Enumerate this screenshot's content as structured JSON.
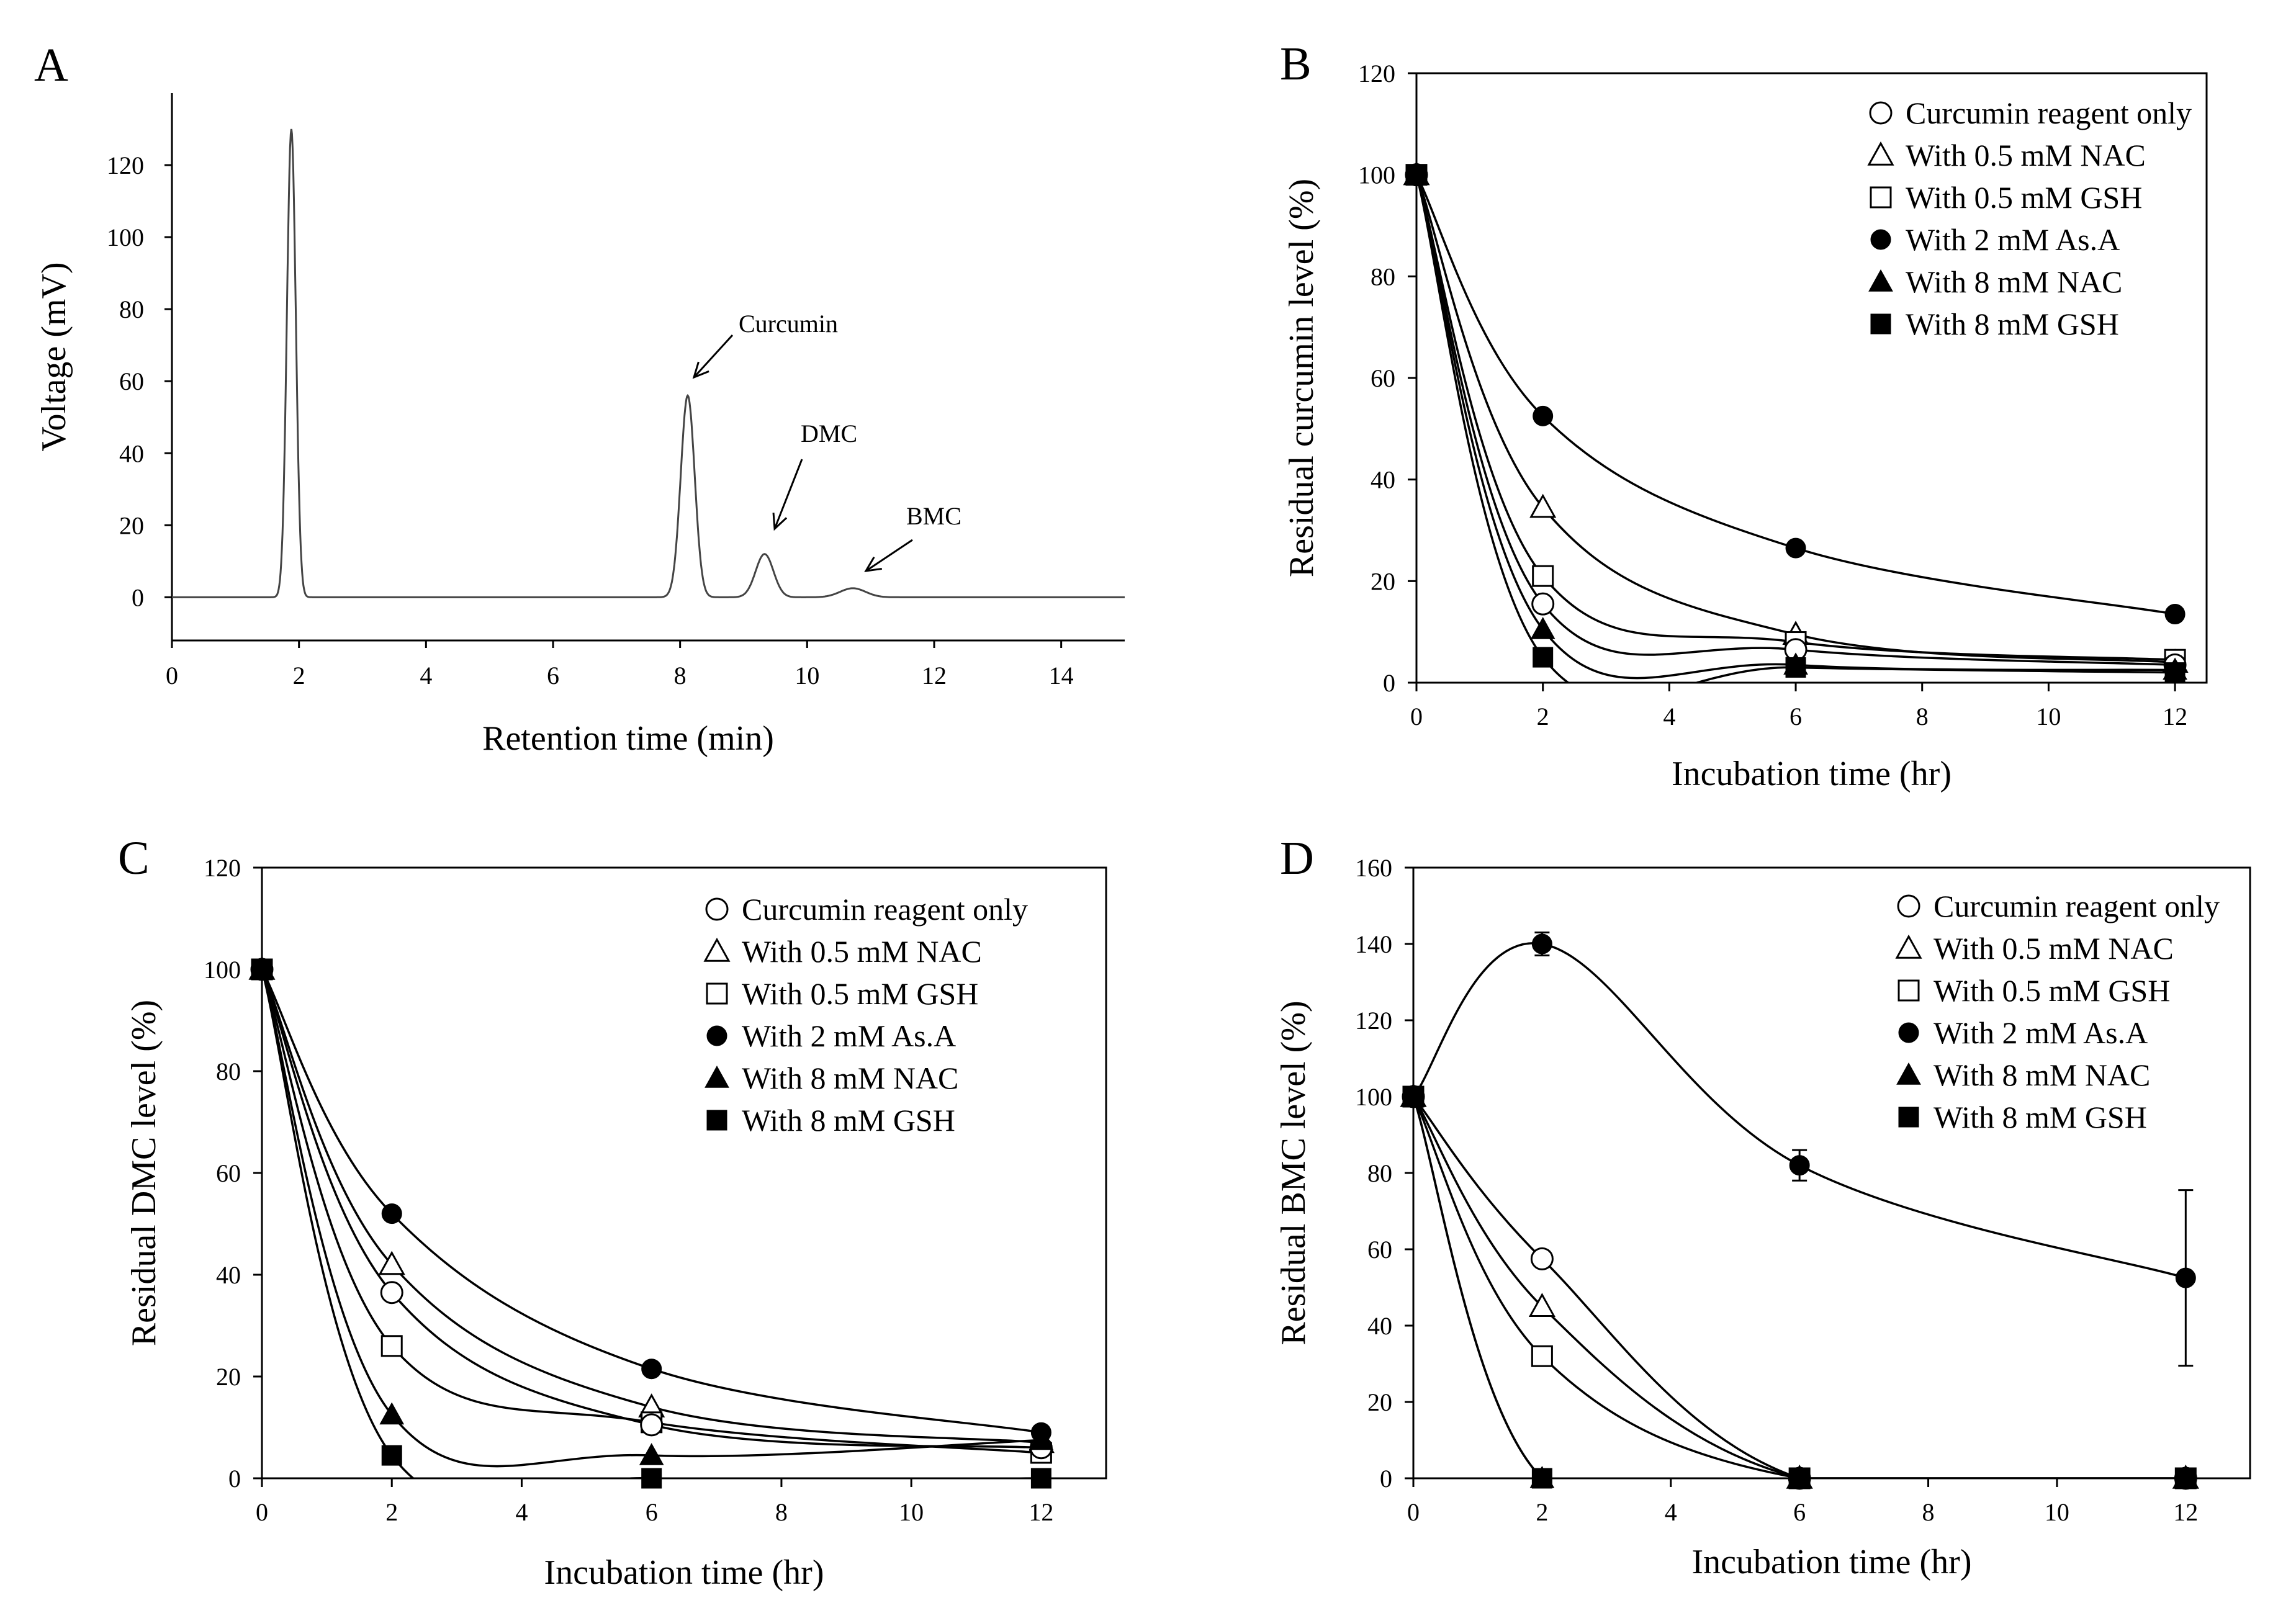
{
  "figure_title": "",
  "chart_data": [
    {
      "id": "A",
      "panel_label": "A",
      "type": "line",
      "title": "",
      "xlabel": "Retention time (min)",
      "ylabel": "Voltage (mV)",
      "xlim": [
        0,
        15
      ],
      "ylim": [
        -12,
        140
      ],
      "xticks": [
        0,
        2,
        4,
        6,
        8,
        10,
        12,
        14
      ],
      "yticks": [
        0,
        20,
        40,
        60,
        80,
        100,
        120
      ],
      "peaks": [
        {
          "center": 1.88,
          "height": 130,
          "width": 0.07
        },
        {
          "center": 8.12,
          "height": 56,
          "width": 0.11
        },
        {
          "center": 9.33,
          "height": 12,
          "width": 0.14
        },
        {
          "center": 10.72,
          "height": 2.5,
          "width": 0.2
        }
      ],
      "annotations": [
        {
          "text": "Curcumin",
          "x": 8.12,
          "y": 56
        },
        {
          "text": "DMC",
          "x": 9.33,
          "y": 12
        },
        {
          "text": "BMC",
          "x": 10.72,
          "y": 2.5
        }
      ]
    },
    {
      "id": "B",
      "panel_label": "B",
      "type": "line",
      "title": "",
      "xlabel": "Incubation time (hr)",
      "ylabel": "Residual  curcumin  level  (%)",
      "xlim": [
        0,
        12.5
      ],
      "ylim": [
        0,
        120
      ],
      "xticks": [
        0,
        2,
        4,
        6,
        8,
        10,
        12
      ],
      "yticks": [
        0,
        20,
        40,
        60,
        80,
        100,
        120
      ],
      "legend_position": "top-right",
      "x": [
        0,
        2,
        6,
        12
      ],
      "series": [
        {
          "name": "Curcumin reagent only",
          "marker": "circle-open",
          "values": [
            100,
            15.5,
            6.5,
            3.5
          ]
        },
        {
          "name": "With 0.5 mM NAC",
          "marker": "triangle-open",
          "values": [
            100,
            34.5,
            9.5,
            4
          ]
        },
        {
          "name": "With 0.5 mM GSH",
          "marker": "square-open",
          "values": [
            100,
            21,
            8,
            4.5
          ]
        },
        {
          "name": "With 2 mM As.A",
          "marker": "circle-filled",
          "values": [
            100,
            52.5,
            26.5,
            13.5
          ]
        },
        {
          "name": "With 8 mM NAC",
          "marker": "triangle-filled",
          "values": [
            100,
            10.5,
            3.5,
            2.5
          ]
        },
        {
          "name": "With 8 mM GSH",
          "marker": "square-filled",
          "values": [
            100,
            5,
            3,
            2
          ]
        }
      ]
    },
    {
      "id": "C",
      "panel_label": "C",
      "type": "line",
      "title": "",
      "xlabel": "Incubation time (hr)",
      "ylabel": "Residual  DMC  level  (%)",
      "xlim": [
        0,
        13
      ],
      "ylim": [
        0,
        120
      ],
      "xticks": [
        0,
        2,
        4,
        6,
        8,
        10,
        12
      ],
      "yticks": [
        0,
        20,
        40,
        60,
        80,
        100,
        120
      ],
      "legend_position": "top-right",
      "x": [
        0,
        2,
        6,
        12
      ],
      "series": [
        {
          "name": "Curcumin reagent only",
          "marker": "circle-open",
          "values": [
            100,
            36.5,
            10.5,
            6
          ]
        },
        {
          "name": "With 0.5 mM NAC",
          "marker": "triangle-open",
          "values": [
            100,
            42,
            14,
            7
          ]
        },
        {
          "name": "With 0.5 mM GSH",
          "marker": "square-open",
          "values": [
            100,
            26,
            11,
            5
          ]
        },
        {
          "name": "With 2 mM As.A",
          "marker": "circle-filled",
          "values": [
            100,
            52,
            21.5,
            9
          ]
        },
        {
          "name": "With 8 mM NAC",
          "marker": "triangle-filled",
          "values": [
            100,
            12.5,
            4.5,
            7.5
          ]
        },
        {
          "name": "With 8 mM GSH",
          "marker": "square-filled",
          "values": [
            100,
            4.5,
            0,
            0
          ]
        }
      ]
    },
    {
      "id": "D",
      "panel_label": "D",
      "type": "line",
      "title": "",
      "xlabel": "Incubation time (hr)",
      "ylabel": "Residual  BMC  level  (%)",
      "xlim": [
        0,
        13
      ],
      "ylim": [
        0,
        160
      ],
      "xticks": [
        0,
        2,
        4,
        6,
        8,
        10,
        12
      ],
      "yticks": [
        0,
        20,
        40,
        60,
        80,
        100,
        120,
        140,
        160
      ],
      "legend_position": "top-right",
      "x": [
        0,
        2,
        6,
        12
      ],
      "series": [
        {
          "name": "Curcumin reagent only",
          "marker": "circle-open",
          "values": [
            100,
            57.5,
            0,
            0
          ]
        },
        {
          "name": "With 0.5 mM NAC",
          "marker": "triangle-open",
          "values": [
            100,
            45,
            0,
            0
          ]
        },
        {
          "name": "With 0.5 mM GSH",
          "marker": "square-open",
          "values": [
            100,
            32,
            0,
            0
          ]
        },
        {
          "name": "With 2 mM As.A",
          "marker": "circle-filled",
          "values": [
            100,
            140,
            82,
            52.5
          ],
          "errors": [
            0,
            3,
            4,
            23
          ]
        },
        {
          "name": "With 8 mM NAC",
          "marker": "triangle-filled",
          "values": [
            100,
            0,
            0,
            0
          ]
        },
        {
          "name": "With 8 mM GSH",
          "marker": "square-filled",
          "values": [
            100,
            0,
            0,
            0
          ]
        }
      ]
    }
  ]
}
